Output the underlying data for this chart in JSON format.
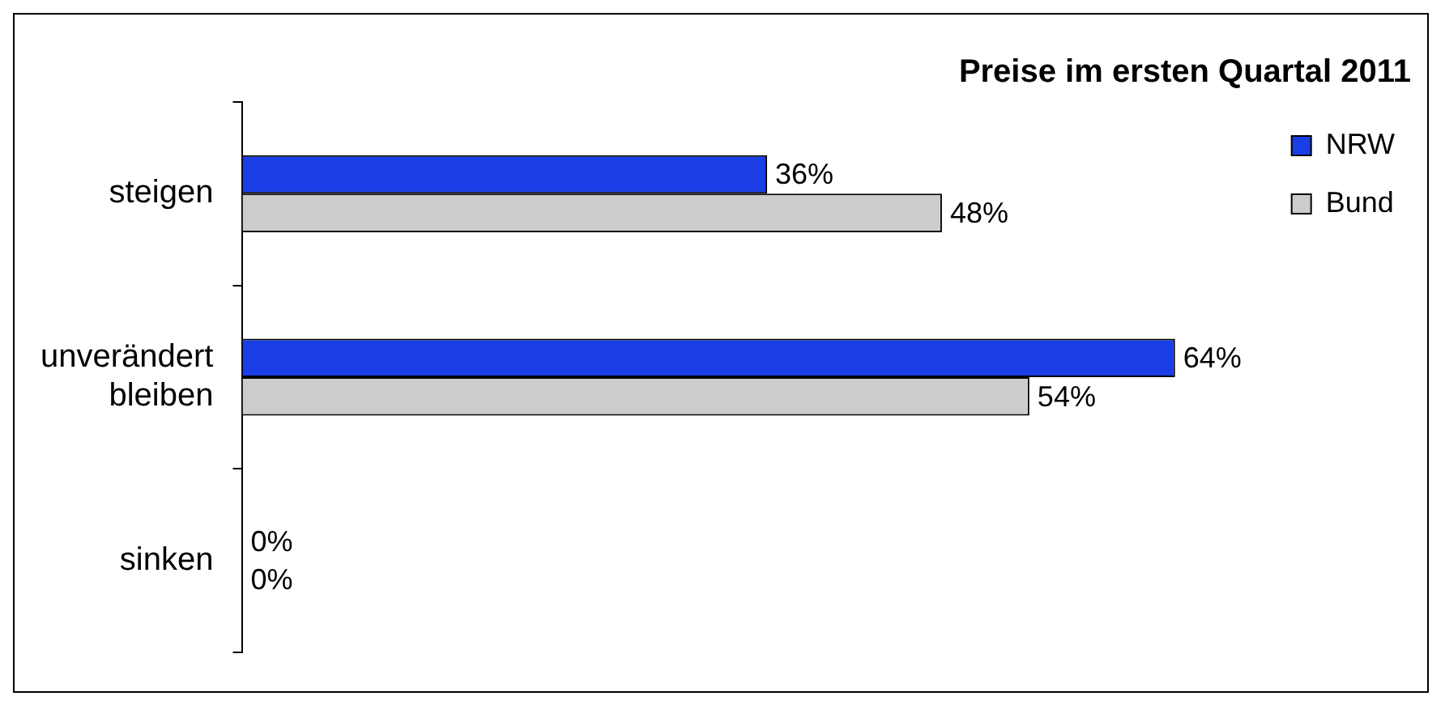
{
  "chart_data": {
    "type": "bar",
    "orientation": "horizontal",
    "title": "Preise im ersten Quartal 2011",
    "tick_labels": "y",
    "categories": [
      "steigen",
      "unverändert bleiben",
      "sinken"
    ],
    "series": [
      {
        "name": "NRW",
        "color": "#1a3ee6",
        "values": [
          36,
          64,
          0
        ],
        "value_labels": [
          "36%",
          "64%",
          "0%"
        ]
      },
      {
        "name": "Bund",
        "color": "#cccccc",
        "values": [
          48,
          54,
          0
        ],
        "value_labels": [
          "48%",
          "54%",
          "0%"
        ]
      }
    ],
    "legend": "top right"
  }
}
